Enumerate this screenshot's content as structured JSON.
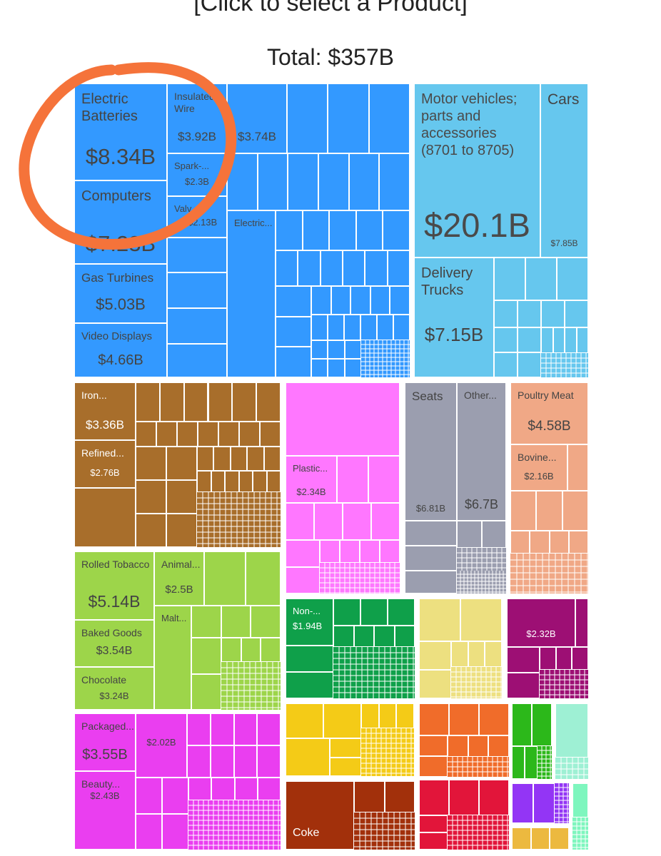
{
  "header": {
    "title_partial": "[Click to select a Product]",
    "total": "Total: $357B"
  },
  "chart_data": {
    "type": "treemap",
    "total": "$357B",
    "colors": {
      "machines": "#3399ff",
      "transportation": "#66c7ee",
      "metals": "#a86e2b",
      "chemicals": "#ff77ff",
      "transport_seats": "#9b9eaf",
      "animal_products": "#f0a886",
      "foodstuffs": "#9dd54a",
      "products_misc": "#ea3ef0",
      "vegetable": "#0fa04a",
      "textiles": "#ede080",
      "plastic": "#9d0f74",
      "stone_glass": "#f4cb17",
      "mineral": "#f06c2a",
      "coke": "#a2300b",
      "red": "#e2153a",
      "green2": "#2cb81a",
      "mint": "#9ef0d4",
      "purple": "#9335f5",
      "gold": "#ecb93f",
      "mint2": "#7ef6be"
    },
    "labeled_cells": [
      {
        "name": "Electric Batteries",
        "value": "$8.34B"
      },
      {
        "name": "Computers",
        "value": "$7.23B"
      },
      {
        "name": "Insulated Wire",
        "value": "$3.92B"
      },
      {
        "name": "",
        "value": "$3.74B"
      },
      {
        "name": "Spark-...",
        "value": "$2.3B"
      },
      {
        "name": "Valv...",
        "value": "$2.13B"
      },
      {
        "name": "Electric...",
        "value": ""
      },
      {
        "name": "Gas Turbines",
        "value": "$5.03B"
      },
      {
        "name": "Video Displays",
        "value": "$4.66B"
      },
      {
        "name": "Motor vehicles; parts and accessories (8701 to 8705)",
        "value": "$20.1B"
      },
      {
        "name": "Cars",
        "value": "$7.85B"
      },
      {
        "name": "Delivery Trucks",
        "value": "$7.15B"
      },
      {
        "name": "Iron...",
        "value": "$3.36B"
      },
      {
        "name": "Refined...",
        "value": "$2.76B"
      },
      {
        "name": "Plastic...",
        "value": "$2.34B"
      },
      {
        "name": "Seats",
        "value": "$6.81B"
      },
      {
        "name": "Other...",
        "value": "$6.7B"
      },
      {
        "name": "Poultry Meat",
        "value": "$4.58B"
      },
      {
        "name": "Bovine...",
        "value": "$2.16B"
      },
      {
        "name": "Rolled Tobacco",
        "value": "$5.14B"
      },
      {
        "name": "Animal...",
        "value": "$2.5B"
      },
      {
        "name": "Malt...",
        "value": ""
      },
      {
        "name": "Baked Goods",
        "value": "$3.54B"
      },
      {
        "name": "Chocolate",
        "value": "$3.24B"
      },
      {
        "name": "Non-...",
        "value": "$1.94B"
      },
      {
        "name": "",
        "value": "$2.32B"
      },
      {
        "name": "Packaged...",
        "value": "$3.55B"
      },
      {
        "name": "",
        "value": "$2.02B"
      },
      {
        "name": "Beauty...",
        "value": "$2.43B"
      },
      {
        "name": "Coke",
        "value": ""
      }
    ]
  }
}
